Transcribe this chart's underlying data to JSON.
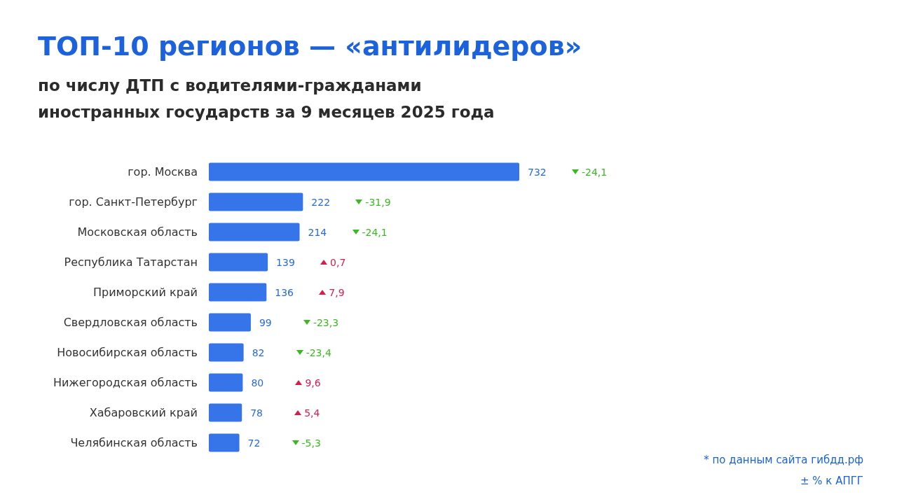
{
  "chart_data": {
    "type": "bar",
    "orientation": "horizontal",
    "title": "ТОП-10 регионов — «антилидеров»",
    "subtitle": "по числу ДТП с водителями-гражданами\nиностранных государств за 9 месяцев 2025 года",
    "categories": [
      "гор. Москва",
      "гор. Санкт-Петербург",
      "Московская область",
      "Республика Татарстан",
      "Приморский край",
      "Свердловская область",
      "Новосибирская область",
      "Нижегородская область",
      "Хабаровский край",
      "Челябинская область"
    ],
    "values": [
      732,
      222,
      214,
      139,
      136,
      99,
      82,
      80,
      78,
      72
    ],
    "color": "#3574e9",
    "data_labels": true,
    "annotations": [
      "-24,1",
      "-31,9",
      "-24,1",
      "0,7",
      "7,9",
      "-23,3",
      "-23,4",
      "9,6",
      "5,4",
      "-5,3",
      "* по данным сайта гибдд.рф",
      "± % к АПГГ"
    ]
  }
}
